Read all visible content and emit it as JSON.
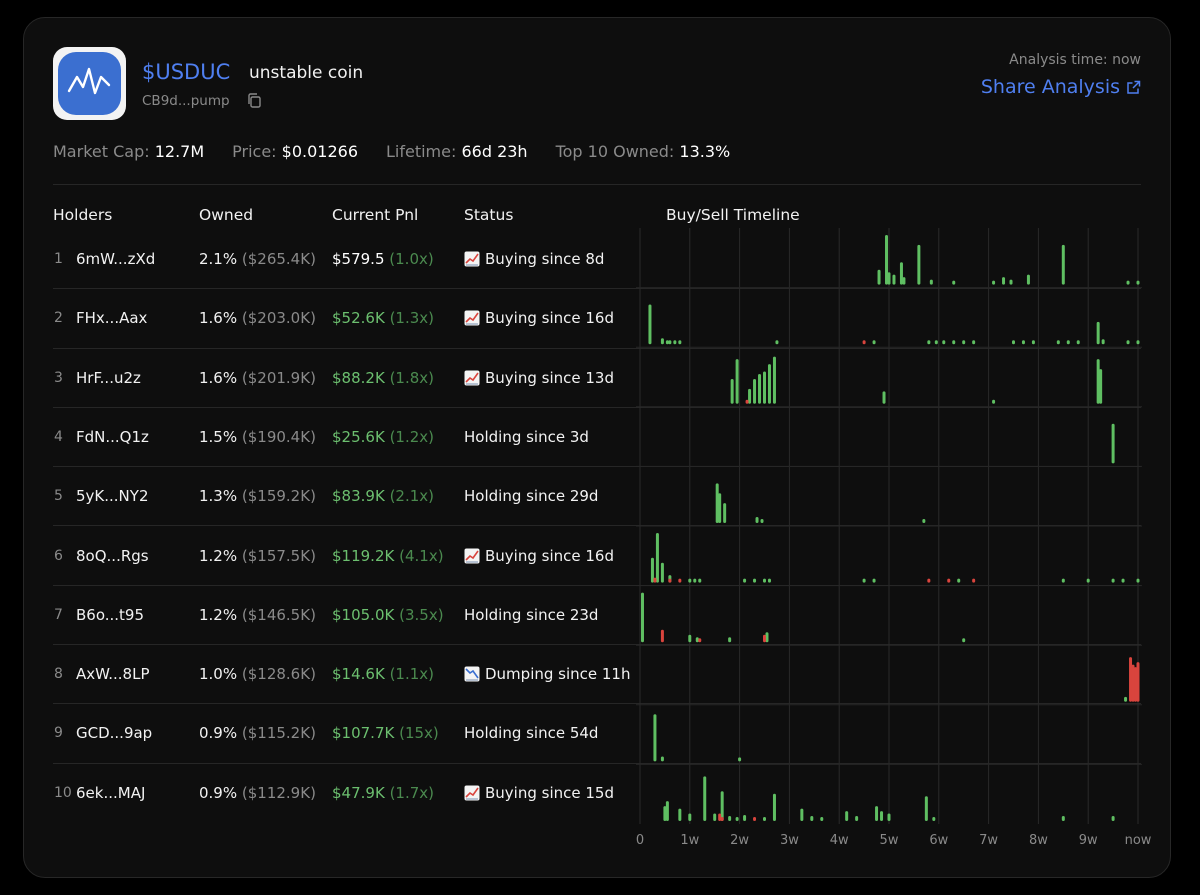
{
  "header": {
    "ticker": "$USDUC",
    "name": "unstable coin",
    "address": "CB9d...pump",
    "analysis_time": "Analysis time: now",
    "share_label": "Share Analysis"
  },
  "stats": [
    {
      "label": "Market Cap:",
      "value": "12.7M"
    },
    {
      "label": "Price:",
      "value": "$0.01266"
    },
    {
      "label": "Lifetime:",
      "value": "66d 23h"
    },
    {
      "label": "Top 10 Owned:",
      "value": "13.3%"
    }
  ],
  "columns": {
    "holders": "Holders",
    "owned": "Owned",
    "pnl": "Current Pnl",
    "status": "Status",
    "timeline": "Buy/Sell Timeline"
  },
  "holders": [
    {
      "rank": "1",
      "address": "6mW...zXd",
      "owned_pct": "2.1%",
      "owned_usd": "($265.4K)",
      "pnl": "$579.5",
      "pnl_mult": "(1.0x)",
      "pnl_color": "white",
      "status_icon": "chart-up-icon",
      "status": "Buying since 8d"
    },
    {
      "rank": "2",
      "address": "FHx...Aax",
      "owned_pct": "1.6%",
      "owned_usd": "($203.0K)",
      "pnl": "$52.6K",
      "pnl_mult": "(1.3x)",
      "pnl_color": "green",
      "status_icon": "chart-up-icon",
      "status": "Buying since 16d"
    },
    {
      "rank": "3",
      "address": "HrF...u2z",
      "owned_pct": "1.6%",
      "owned_usd": "($201.9K)",
      "pnl": "$88.2K",
      "pnl_mult": "(1.8x)",
      "pnl_color": "green",
      "status_icon": "chart-up-icon",
      "status": "Buying since 13d"
    },
    {
      "rank": "4",
      "address": "FdN...Q1z",
      "owned_pct": "1.5%",
      "owned_usd": "($190.4K)",
      "pnl": "$25.6K",
      "pnl_mult": "(1.2x)",
      "pnl_color": "green",
      "status_icon": "",
      "status": "Holding since 3d"
    },
    {
      "rank": "5",
      "address": "5yK...NY2",
      "owned_pct": "1.3%",
      "owned_usd": "($159.2K)",
      "pnl": "$83.9K",
      "pnl_mult": "(2.1x)",
      "pnl_color": "green",
      "status_icon": "",
      "status": "Holding since 29d"
    },
    {
      "rank": "6",
      "address": "8oQ...Rgs",
      "owned_pct": "1.2%",
      "owned_usd": "($157.5K)",
      "pnl": "$119.2K",
      "pnl_mult": "(4.1x)",
      "pnl_color": "green",
      "status_icon": "chart-up-icon",
      "status": "Buying since 16d"
    },
    {
      "rank": "7",
      "address": "B6o...t95",
      "owned_pct": "1.2%",
      "owned_usd": "($146.5K)",
      "pnl": "$105.0K",
      "pnl_mult": "(3.5x)",
      "pnl_color": "green",
      "status_icon": "",
      "status": "Holding since 23d"
    },
    {
      "rank": "8",
      "address": "AxW...8LP",
      "owned_pct": "1.0%",
      "owned_usd": "($128.6K)",
      "pnl": "$14.6K",
      "pnl_mult": "(1.1x)",
      "pnl_color": "green",
      "status_icon": "chart-down-icon",
      "status": "Dumping since 11h"
    },
    {
      "rank": "9",
      "address": "GCD...9ap",
      "owned_pct": "0.9%",
      "owned_usd": "($115.2K)",
      "pnl": "$107.7K",
      "pnl_mult": "(15x)",
      "pnl_color": "green",
      "status_icon": "",
      "status": "Holding since 54d"
    },
    {
      "rank": "10",
      "address": "6ek...MAJ",
      "owned_pct": "0.9%",
      "owned_usd": "($112.9K)",
      "pnl": "$47.9K",
      "pnl_mult": "(1.7x)",
      "pnl_color": "green",
      "status_icon": "chart-up-icon",
      "status": "Buying since 15d"
    }
  ],
  "colors": {
    "accent": "#4f7ff0",
    "buy": "#5fbf62",
    "sell": "#d9443d",
    "grid": "#2a2a2a",
    "muted": "#8a8a8a"
  },
  "chart_data": {
    "type": "bar",
    "x_unit": "weeks since launch",
    "x_ticks": [
      "0",
      "1w",
      "2w",
      "3w",
      "4w",
      "5w",
      "6w",
      "7w",
      "8w",
      "9w",
      "now"
    ],
    "x_tick_values": [
      0,
      1,
      2,
      3,
      4,
      5,
      6,
      7,
      8,
      9,
      10
    ],
    "xlim": [
      0,
      10
    ],
    "grid": true,
    "series": [
      {
        "buys": [
          [
            4.8,
            0.3
          ],
          [
            4.95,
            1.0
          ],
          [
            5.0,
            0.25
          ],
          [
            5.1,
            0.2
          ],
          [
            5.25,
            0.45
          ],
          [
            5.3,
            0.15
          ],
          [
            5.6,
            0.8
          ],
          [
            5.85,
            0.1
          ],
          [
            6.3,
            0.05
          ],
          [
            7.1,
            0.05
          ],
          [
            7.3,
            0.15
          ],
          [
            7.45,
            0.1
          ],
          [
            7.8,
            0.2
          ],
          [
            8.5,
            0.8
          ],
          [
            9.8,
            0.05
          ],
          [
            10.0,
            0.05
          ]
        ],
        "sells": []
      },
      {
        "buys": [
          [
            0.2,
            0.8
          ],
          [
            0.45,
            0.12
          ],
          [
            0.55,
            0.05
          ],
          [
            0.6,
            0.05
          ],
          [
            0.7,
            0.05
          ],
          [
            0.8,
            0.05
          ],
          [
            2.75,
            0.05
          ],
          [
            4.7,
            0.05
          ],
          [
            5.8,
            0.05
          ],
          [
            5.95,
            0.05
          ],
          [
            6.1,
            0.05
          ],
          [
            6.3,
            0.05
          ],
          [
            6.5,
            0.05
          ],
          [
            6.7,
            0.05
          ],
          [
            7.5,
            0.05
          ],
          [
            7.7,
            0.05
          ],
          [
            7.9,
            0.05
          ],
          [
            8.4,
            0.05
          ],
          [
            8.6,
            0.05
          ],
          [
            8.8,
            0.05
          ],
          [
            9.2,
            0.45
          ],
          [
            9.3,
            0.1
          ],
          [
            9.8,
            0.05
          ],
          [
            10.0,
            0.05
          ]
        ],
        "sells": [
          [
            4.5,
            0.05
          ]
        ]
      },
      {
        "buys": [
          [
            1.85,
            0.5
          ],
          [
            1.95,
            0.9
          ],
          [
            2.2,
            0.3
          ],
          [
            2.3,
            0.5
          ],
          [
            2.4,
            0.6
          ],
          [
            2.5,
            0.65
          ],
          [
            2.6,
            0.8
          ],
          [
            2.7,
            0.95
          ],
          [
            4.9,
            0.25
          ],
          [
            7.1,
            0.05
          ],
          [
            9.2,
            0.9
          ],
          [
            9.25,
            0.7
          ]
        ],
        "sells": [
          [
            2.15,
            0.08
          ]
        ]
      },
      {
        "buys": [
          [
            9.5,
            0.8
          ]
        ],
        "sells": []
      },
      {
        "buys": [
          [
            1.55,
            0.8
          ],
          [
            1.6,
            0.6
          ],
          [
            1.7,
            0.4
          ],
          [
            2.35,
            0.12
          ],
          [
            2.45,
            0.08
          ],
          [
            5.7,
            0.08
          ]
        ],
        "sells": []
      },
      {
        "buys": [
          [
            0.25,
            0.5
          ],
          [
            0.35,
            1.0
          ],
          [
            0.45,
            0.4
          ],
          [
            0.6,
            0.15
          ],
          [
            1.0,
            0.05
          ],
          [
            1.1,
            0.05
          ],
          [
            1.2,
            0.05
          ],
          [
            2.1,
            0.05
          ],
          [
            2.3,
            0.05
          ],
          [
            2.5,
            0.05
          ],
          [
            2.6,
            0.05
          ],
          [
            4.5,
            0.05
          ],
          [
            4.7,
            0.05
          ],
          [
            6.4,
            0.05
          ],
          [
            8.5,
            0.05
          ],
          [
            9.0,
            0.05
          ],
          [
            9.5,
            0.05
          ],
          [
            9.7,
            0.05
          ],
          [
            10.0,
            0.05
          ]
        ],
        "sells": [
          [
            0.3,
            0.1
          ],
          [
            0.6,
            0.05
          ],
          [
            0.8,
            0.05
          ],
          [
            5.8,
            0.05
          ],
          [
            6.2,
            0.05
          ],
          [
            6.7,
            0.05
          ]
        ]
      },
      {
        "buys": [
          [
            0.05,
            1.0
          ],
          [
            1.0,
            0.15
          ],
          [
            1.15,
            0.1
          ],
          [
            1.8,
            0.1
          ],
          [
            2.55,
            0.2
          ],
          [
            6.5,
            0.05
          ]
        ],
        "sells": [
          [
            0.45,
            0.25
          ],
          [
            1.2,
            0.05
          ],
          [
            2.5,
            0.15
          ]
        ]
      },
      {
        "buys": [
          [
            9.75,
            0.1
          ]
        ],
        "sells": [
          [
            9.85,
            0.9
          ],
          [
            9.9,
            0.75
          ],
          [
            9.95,
            0.7
          ],
          [
            10.0,
            0.8
          ]
        ]
      },
      {
        "buys": [
          [
            0.3,
            0.95
          ],
          [
            0.45,
            0.1
          ],
          [
            2.0,
            0.05
          ]
        ],
        "sells": []
      },
      {
        "buys": [
          [
            0.5,
            0.3
          ],
          [
            0.55,
            0.4
          ],
          [
            0.8,
            0.25
          ],
          [
            1.0,
            0.15
          ],
          [
            1.3,
            0.9
          ],
          [
            1.5,
            0.15
          ],
          [
            1.65,
            0.6
          ],
          [
            1.8,
            0.1
          ],
          [
            1.95,
            0.05
          ],
          [
            2.1,
            0.12
          ],
          [
            2.5,
            0.05
          ],
          [
            2.7,
            0.55
          ],
          [
            3.25,
            0.25
          ],
          [
            3.45,
            0.1
          ],
          [
            3.65,
            0.05
          ],
          [
            4.15,
            0.2
          ],
          [
            4.35,
            0.1
          ],
          [
            4.75,
            0.3
          ],
          [
            4.85,
            0.2
          ],
          [
            5.0,
            0.15
          ],
          [
            5.75,
            0.5
          ],
          [
            5.9,
            0.05
          ],
          [
            8.5,
            0.1
          ],
          [
            9.5,
            0.1
          ]
        ],
        "sells": [
          [
            1.6,
            0.15
          ],
          [
            1.65,
            0.05
          ],
          [
            2.3,
            0.05
          ]
        ]
      }
    ]
  }
}
